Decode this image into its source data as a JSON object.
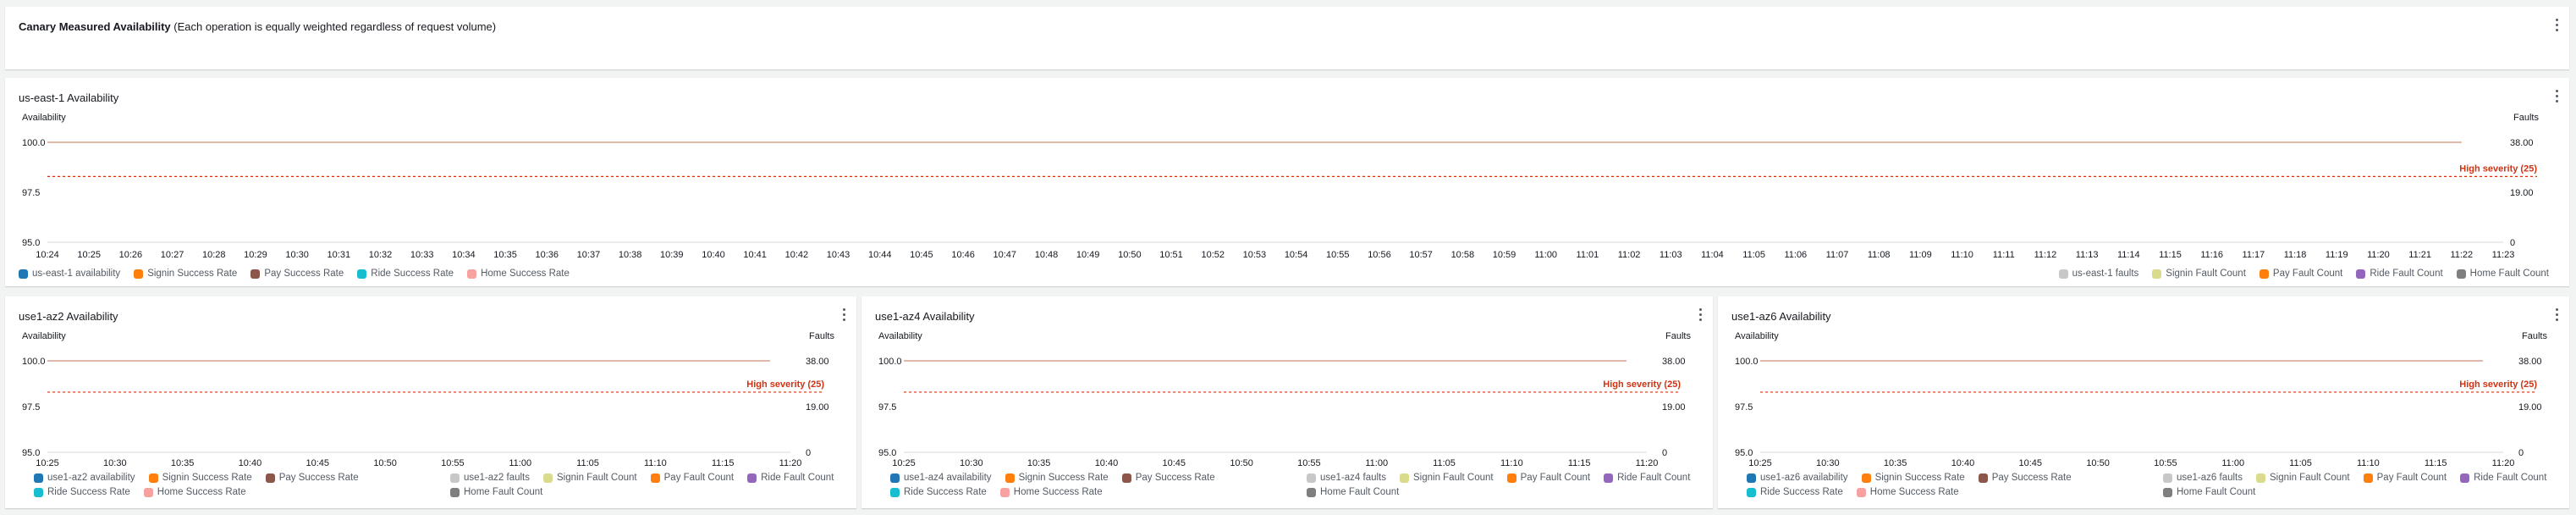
{
  "header": {
    "title_bold": "Canary Measured Availability",
    "title_rest": "(Each operation is equally weighted regardless of request volume)"
  },
  "colors": {
    "availability": "#1f77b4",
    "signin_rate": "#ff7f0e",
    "pay_rate": "#8c564b",
    "ride_rate": "#17becf",
    "home_rate": "#f7a1a1",
    "faults": "#c7c7c7",
    "signin_count": "#dbdb8d",
    "pay_count": "#ff7f0e",
    "ride_count": "#9467bd",
    "home_count": "#7f7f7f",
    "threshold": "#d13212"
  },
  "panels": [
    {
      "id": "region",
      "title": "us-east-1 Availability",
      "left_axis_label": "Availability",
      "right_axis_label": "Faults",
      "threshold_label": "High severity (25)",
      "legend_left": [
        "us-east-1 availability",
        "Signin Success Rate",
        "Pay Success Rate",
        "Ride Success Rate",
        "Home Success Rate"
      ],
      "legend_right": [
        "us-east-1 faults",
        "Signin Fault Count",
        "Pay Fault Count",
        "Ride Fault Count",
        "Home Fault Count"
      ]
    },
    {
      "id": "az2",
      "title": "use1-az2 Availability",
      "left_axis_label": "Availability",
      "right_axis_label": "Faults",
      "threshold_label": "High severity (25)",
      "legend_left": [
        "use1-az2 availability",
        "Signin Success Rate",
        "Pay Success Rate",
        "Ride Success Rate",
        "Home Success Rate"
      ],
      "legend_right": [
        "use1-az2 faults",
        "Signin Fault Count",
        "Pay Fault Count",
        "Ride Fault Count",
        "Home Fault Count"
      ]
    },
    {
      "id": "az4",
      "title": "use1-az4 Availability",
      "left_axis_label": "Availability",
      "right_axis_label": "Faults",
      "threshold_label": "High severity (25)",
      "legend_left": [
        "use1-az4 availability",
        "Signin Success Rate",
        "Pay Success Rate",
        "Ride Success Rate",
        "Home Success Rate"
      ],
      "legend_right": [
        "use1-az4 faults",
        "Signin Fault Count",
        "Pay Fault Count",
        "Ride Fault Count",
        "Home Fault Count"
      ]
    },
    {
      "id": "az6",
      "title": "use1-az6 Availability",
      "left_axis_label": "Availability",
      "right_axis_label": "Faults",
      "threshold_label": "High severity (25)",
      "legend_left": [
        "use1-az6 availability",
        "Signin Success Rate",
        "Pay Success Rate",
        "Ride Success Rate",
        "Home Success Rate"
      ],
      "legend_right": [
        "use1-az6 faults",
        "Signin Fault Count",
        "Pay Fault Count",
        "Ride Fault Count",
        "Home Fault Count"
      ]
    }
  ],
  "chart_data": [
    {
      "type": "line",
      "panel": "us-east-1 Availability",
      "x": [
        "10:24",
        "10:25",
        "10:26",
        "10:27",
        "10:28",
        "10:29",
        "10:30",
        "10:31",
        "10:32",
        "10:33",
        "10:34",
        "10:35",
        "10:36",
        "10:37",
        "10:38",
        "10:39",
        "10:40",
        "10:41",
        "10:42",
        "10:43",
        "10:44",
        "10:45",
        "10:46",
        "10:47",
        "10:48",
        "10:49",
        "10:50",
        "10:51",
        "10:52",
        "10:53",
        "10:54",
        "10:55",
        "10:56",
        "10:57",
        "10:58",
        "10:59",
        "11:00",
        "11:01",
        "11:02",
        "11:03",
        "11:04",
        "11:05",
        "11:06",
        "11:07",
        "11:08",
        "11:09",
        "11:10",
        "11:11",
        "11:12",
        "11:13",
        "11:14",
        "11:15",
        "11:16",
        "11:17",
        "11:18",
        "11:19",
        "11:20",
        "11:21",
        "11:22",
        "11:23"
      ],
      "ylabel": "Availability",
      "y2label": "Faults",
      "y_ticks": [
        "100.0",
        "97.5",
        "95.0"
      ],
      "ylim": [
        95,
        100
      ],
      "y2_ticks": [
        "38.00",
        "19.00",
        "0"
      ],
      "y2lim": [
        0,
        38
      ],
      "series": [
        {
          "name": "us-east-1 availability",
          "axis": "left",
          "value": 100,
          "x_from": "10:24",
          "x_to": "11:22"
        }
      ],
      "threshold": {
        "label": "High severity (25)",
        "value": 25,
        "axis": "right"
      }
    },
    {
      "type": "line",
      "panel": "use1-az2 Availability",
      "x": [
        "10:25",
        "10:30",
        "10:35",
        "10:40",
        "10:45",
        "10:50",
        "10:55",
        "11:00",
        "11:05",
        "11:10",
        "11:15",
        "11:20"
      ],
      "ylabel": "Availability",
      "y2label": "Faults",
      "y_ticks": [
        "100.0",
        "97.5",
        "95.0"
      ],
      "ylim": [
        95,
        100
      ],
      "y2_ticks": [
        "38.00",
        "19.00",
        "0"
      ],
      "y2lim": [
        0,
        38
      ],
      "series": [
        {
          "name": "use1-az2 availability",
          "axis": "left",
          "value": 100
        }
      ],
      "threshold": {
        "label": "High severity (25)",
        "value": 25,
        "axis": "right"
      }
    },
    {
      "type": "line",
      "panel": "use1-az4 Availability",
      "x": [
        "10:25",
        "10:30",
        "10:35",
        "10:40",
        "10:45",
        "10:50",
        "10:55",
        "11:00",
        "11:05",
        "11:10",
        "11:15",
        "11:20"
      ],
      "ylabel": "Availability",
      "y2label": "Faults",
      "y_ticks": [
        "100.0",
        "97.5",
        "95.0"
      ],
      "ylim": [
        95,
        100
      ],
      "y2_ticks": [
        "38.00",
        "19.00",
        "0"
      ],
      "y2lim": [
        0,
        38
      ],
      "series": [
        {
          "name": "use1-az4 availability",
          "axis": "left",
          "value": 100
        }
      ],
      "threshold": {
        "label": "High severity (25)",
        "value": 25,
        "axis": "right"
      }
    },
    {
      "type": "line",
      "panel": "use1-az6 Availability",
      "x": [
        "10:25",
        "10:30",
        "10:35",
        "10:40",
        "10:45",
        "10:50",
        "10:55",
        "11:00",
        "11:05",
        "11:10",
        "11:15",
        "11:20"
      ],
      "ylabel": "Availability",
      "y2label": "Faults",
      "y_ticks": [
        "100.0",
        "97.5",
        "95.0"
      ],
      "ylim": [
        95,
        100
      ],
      "y2_ticks": [
        "38.00",
        "19.00",
        "0"
      ],
      "y2lim": [
        0,
        38
      ],
      "series": [
        {
          "name": "use1-az6 availability",
          "axis": "left",
          "value": 100
        }
      ],
      "threshold": {
        "label": "High severity (25)",
        "value": 25,
        "axis": "right"
      }
    }
  ]
}
